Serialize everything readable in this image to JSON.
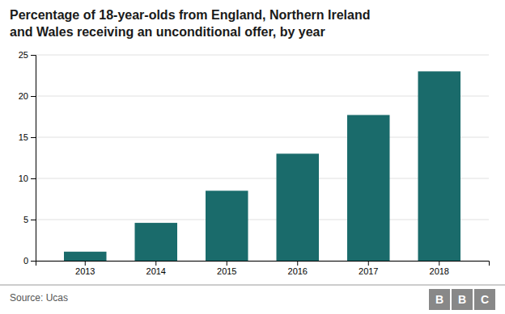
{
  "chart_data": {
    "type": "bar",
    "title": "Percentage of 18-year-olds from England, Northern Ireland\nand Wales receiving an unconditional offer, by year",
    "categories": [
      "2013",
      "2014",
      "2015",
      "2016",
      "2017",
      "2018"
    ],
    "values": [
      1.1,
      4.6,
      8.5,
      13.0,
      17.7,
      23.0
    ],
    "color": "#1a6b6b",
    "ylim": [
      0,
      25
    ],
    "yticks": [
      0,
      5,
      10,
      15,
      20,
      25
    ],
    "grid": true,
    "annotations": [
      "Source: Ucas",
      "BBC"
    ]
  }
}
